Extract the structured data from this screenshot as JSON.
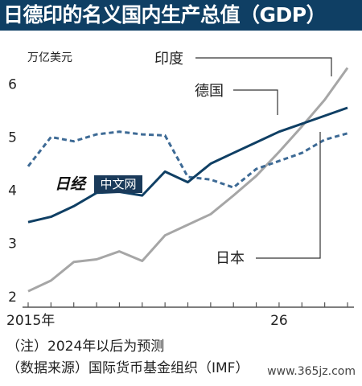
{
  "header": {
    "title": "日德印的名义国内生产总值（GDP）"
  },
  "chart_data": {
    "type": "line",
    "unit_label": "万亿美元",
    "x": [
      2015,
      2016,
      2017,
      2018,
      2019,
      2020,
      2021,
      2022,
      2023,
      2024,
      2025,
      2026,
      2027,
      2028,
      2029
    ],
    "x_tick_labels": [
      {
        "x": 2015,
        "label": "2015年"
      },
      {
        "x": 2026,
        "label": "26"
      }
    ],
    "ylim": [
      1.8,
      6.7
    ],
    "y_ticks": [
      2,
      3,
      4,
      5,
      6
    ],
    "grid": false,
    "series": [
      {
        "name": "印度",
        "color": "#a6a6a6",
        "dash": "solid",
        "values": [
          2.1,
          2.3,
          2.65,
          2.7,
          2.85,
          2.67,
          3.15,
          3.35,
          3.55,
          3.9,
          4.27,
          4.72,
          5.2,
          5.7,
          6.3
        ]
      },
      {
        "name": "德国",
        "color": "#0f3f64",
        "dash": "solid",
        "values": [
          3.4,
          3.5,
          3.7,
          3.95,
          3.97,
          3.9,
          4.35,
          4.15,
          4.5,
          4.7,
          4.9,
          5.1,
          5.25,
          5.4,
          5.55
        ]
      },
      {
        "name": "日本",
        "color": "#3d6a95",
        "dash": "dashed",
        "values": [
          4.45,
          5.0,
          4.92,
          5.05,
          5.1,
          5.05,
          5.03,
          4.25,
          4.2,
          4.05,
          4.4,
          4.55,
          4.7,
          4.95,
          5.07
        ]
      }
    ]
  },
  "watermark": {
    "logo_text": "日经",
    "badge_text": "中文网",
    "site": "www.365jz.com"
  },
  "notes": {
    "line1": "（注）2024年以后为预测",
    "line2": "（数据来源）国际货币基金组织（IMF）"
  }
}
